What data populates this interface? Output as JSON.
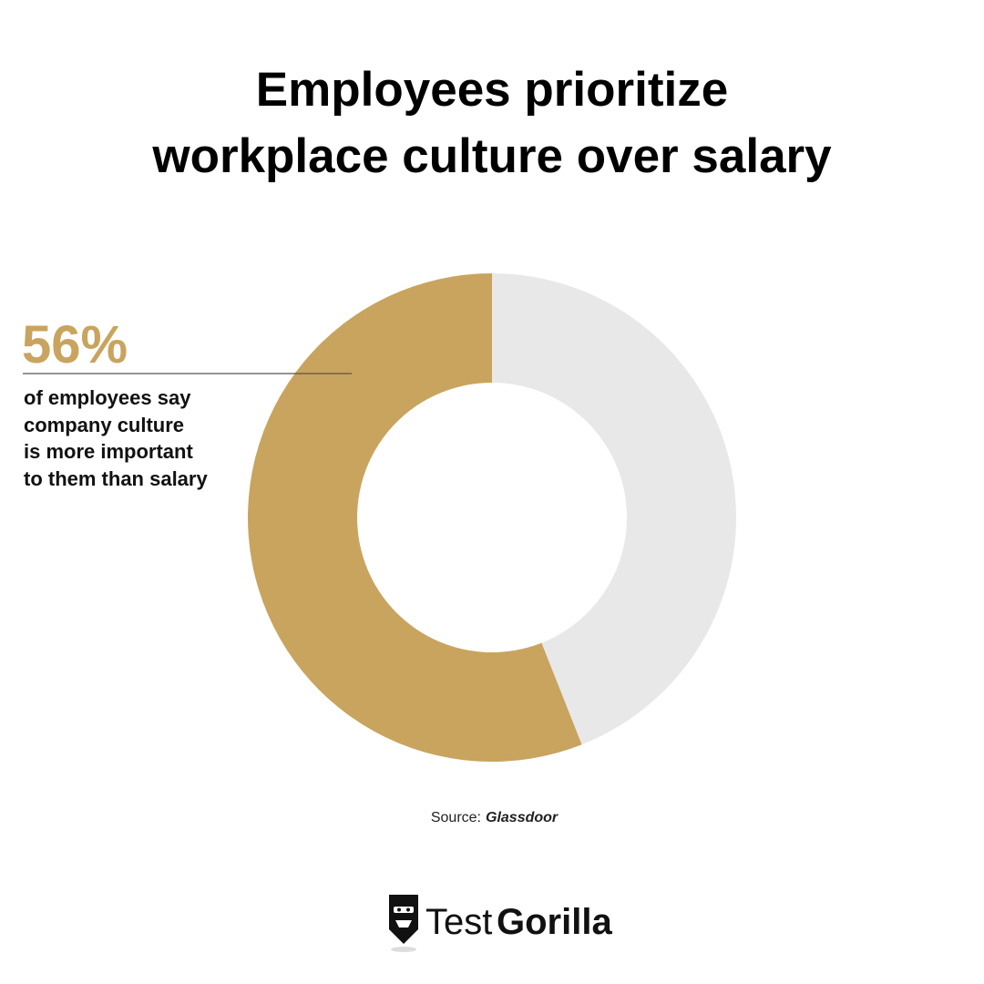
{
  "chart_data": {
    "type": "donut",
    "title": [
      "Employees prioritize",
      "workplace culture over salary"
    ],
    "values": [
      56,
      44
    ],
    "value_labels": [
      "56%",
      null
    ],
    "colors": [
      "#c9a45f",
      "#e8e8e8"
    ],
    "annotation": [
      "of employees say",
      "company culture",
      "is more important",
      "to them than salary"
    ],
    "source": {
      "label": "Source:",
      "name": "Glassdoor"
    },
    "logo": {
      "light": "Test",
      "bold": "Gorilla"
    }
  }
}
